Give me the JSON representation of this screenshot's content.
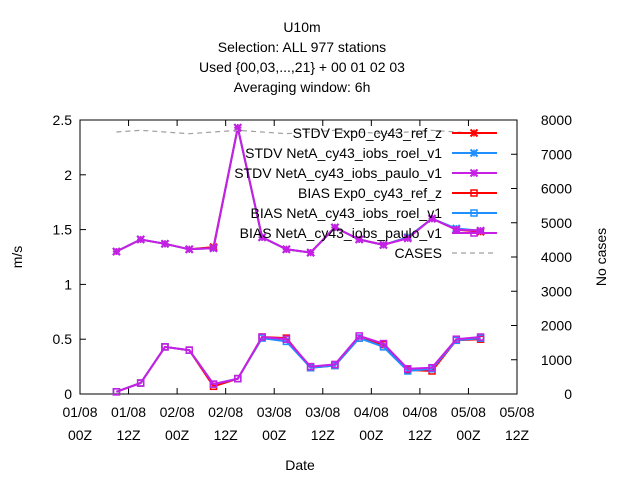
{
  "chart_data": {
    "type": "line",
    "title": [
      "U10m",
      "Selection: ALL    977 stations",
      "Used {00,03,...,21} + 00 01 02 03",
      "Averaging window:  6h"
    ],
    "xlabel": "Date",
    "ylabel": "m/s",
    "y2label": "No cases",
    "xticks": [
      {
        "top": "01/08",
        "bottom": "00Z"
      },
      {
        "top": "01/08",
        "bottom": "12Z"
      },
      {
        "top": "02/08",
        "bottom": "00Z"
      },
      {
        "top": "02/08",
        "bottom": "12Z"
      },
      {
        "top": "03/08",
        "bottom": "00Z"
      },
      {
        "top": "03/08",
        "bottom": "12Z"
      },
      {
        "top": "04/08",
        "bottom": "00Z"
      },
      {
        "top": "04/08",
        "bottom": "12Z"
      },
      {
        "top": "05/08",
        "bottom": "00Z"
      },
      {
        "top": "05/08",
        "bottom": "12Z"
      }
    ],
    "xlim": [
      0,
      108
    ],
    "ylim": [
      0,
      2.5
    ],
    "yticks": [
      "0",
      "0.5",
      "1",
      "1.5",
      "2",
      "2.5"
    ],
    "y2lim": [
      0,
      8000
    ],
    "y2ticks": [
      "0",
      "1000",
      "2000",
      "3000",
      "4000",
      "5000",
      "6000",
      "7000",
      "8000"
    ],
    "x": [
      9,
      15,
      21,
      27,
      33,
      39,
      45,
      51,
      57,
      63,
      69,
      75,
      81,
      87,
      93,
      99
    ],
    "legend_position": "top-right",
    "series": [
      {
        "name": "STDV Exp0_cy43_ref_z",
        "color": "#ff0000",
        "marker": "x",
        "axis": "y",
        "values": [
          1.3,
          1.41,
          1.37,
          1.32,
          1.34,
          2.43,
          1.43,
          1.32,
          1.29,
          1.52,
          1.41,
          1.36,
          1.43,
          1.6,
          1.5,
          1.48
        ]
      },
      {
        "name": "STDV NetA_cy43_iobs_roel_v1",
        "color": "#1e90ff",
        "marker": "x",
        "axis": "y",
        "values": [
          1.3,
          1.41,
          1.37,
          1.32,
          1.33,
          2.43,
          1.43,
          1.32,
          1.29,
          1.52,
          1.41,
          1.36,
          1.43,
          1.6,
          1.51,
          1.49
        ]
      },
      {
        "name": "STDV NetA_cy43_iobs_paulo_v1",
        "color": "#c71fe6",
        "marker": "x",
        "axis": "y",
        "values": [
          1.3,
          1.41,
          1.37,
          1.32,
          1.33,
          2.43,
          1.43,
          1.32,
          1.29,
          1.52,
          1.41,
          1.36,
          1.42,
          1.6,
          1.5,
          1.49
        ]
      },
      {
        "name": "BIAS Exp0_cy43_ref_z",
        "color": "#ff0000",
        "marker": "square",
        "axis": "y",
        "values": [
          0.02,
          0.1,
          0.43,
          0.4,
          0.07,
          0.14,
          0.52,
          0.51,
          0.24,
          0.26,
          0.51,
          0.45,
          0.22,
          0.21,
          0.49,
          0.5
        ]
      },
      {
        "name": "BIAS NetA_cy43_iobs_roel_v1",
        "color": "#1e90ff",
        "marker": "square",
        "axis": "y",
        "values": [
          0.02,
          0.1,
          0.43,
          0.4,
          0.09,
          0.14,
          0.51,
          0.48,
          0.24,
          0.26,
          0.51,
          0.43,
          0.21,
          0.23,
          0.49,
          0.51
        ]
      },
      {
        "name": "BIAS NetA_cy43_iobs_paulo_v1",
        "color": "#c71fe6",
        "marker": "square",
        "axis": "y",
        "values": [
          0.02,
          0.1,
          0.43,
          0.4,
          0.09,
          0.14,
          0.52,
          0.5,
          0.25,
          0.27,
          0.53,
          0.46,
          0.23,
          0.24,
          0.5,
          0.52
        ]
      },
      {
        "name": "CASES",
        "color": "#a0a0a0",
        "marker": "none",
        "dashed": true,
        "axis": "y2",
        "values": [
          7650,
          7700,
          7650,
          7600,
          7650,
          7700,
          7650,
          7600,
          7650,
          7700,
          7650,
          7600,
          7650,
          7700,
          7650,
          7600
        ]
      }
    ]
  }
}
